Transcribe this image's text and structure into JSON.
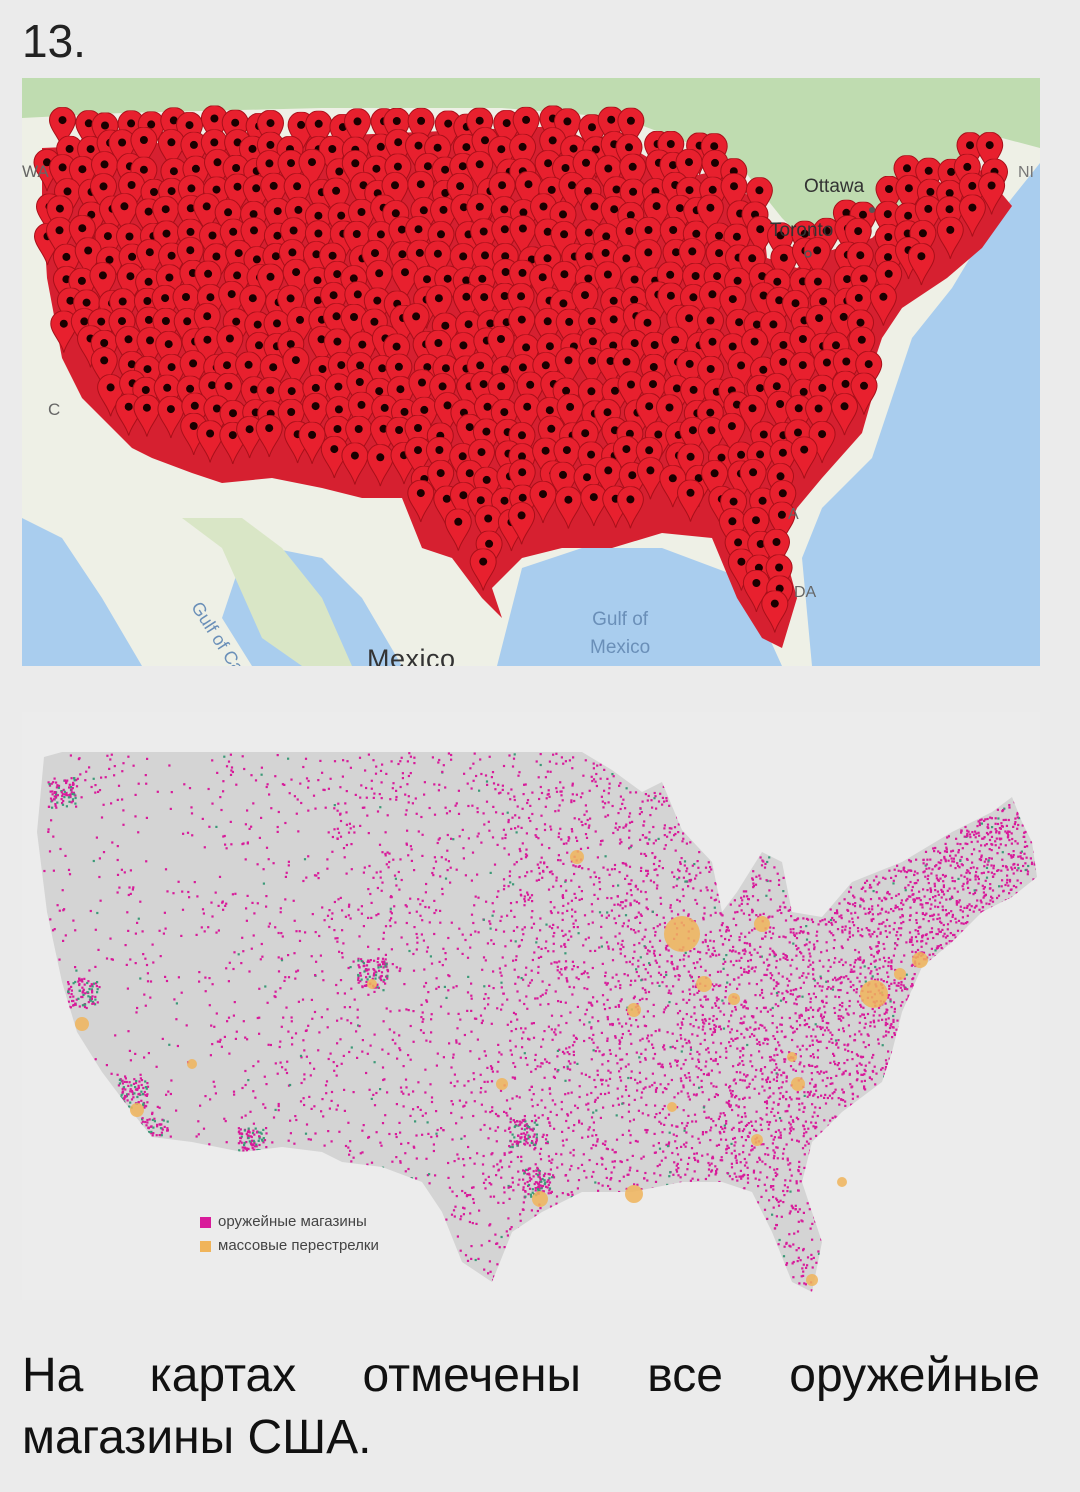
{
  "item_number": "13.",
  "map_top": {
    "labels": {
      "wa": "WA",
      "ca": "C",
      "ottawa": "Ottawa",
      "toronto": "Toronto",
      "ni": "NI",
      "gulf_of_mexico": "Gulf of\nMexico",
      "gulf_of_california": "Gulf of California",
      "mexico": "Mexico",
      "fl": "DA",
      "ga": "A"
    },
    "marker_color": "#e8202e",
    "marker_icon": "map-pin-icon"
  },
  "map_bottom": {
    "legend": [
      {
        "label": "оружейные магазины",
        "color": "#d81b9a"
      },
      {
        "label": "массовые перестрелки",
        "color": "#f0b45a"
      }
    ]
  },
  "caption": "На картах отмечены все оружейные магазины США."
}
